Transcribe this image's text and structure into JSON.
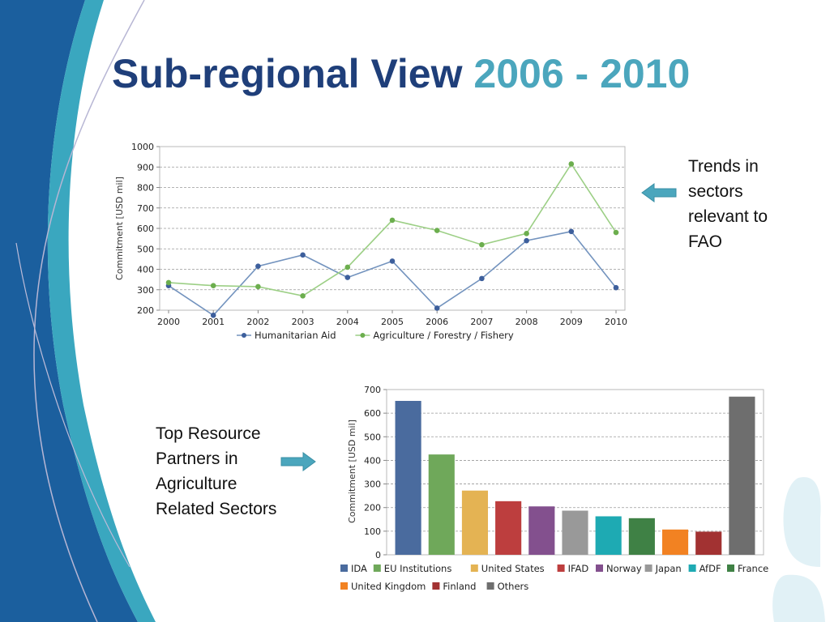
{
  "title": {
    "main": "Sub-regional View",
    "years": "2006 - 2010"
  },
  "note_trends": [
    "Trends in",
    "sectors",
    "relevant to",
    "FAO"
  ],
  "note_partners": [
    "Top Resource",
    "Partners in",
    "Agriculture",
    "Related Sectors"
  ],
  "colors": {
    "title": "#1f3f7a",
    "accent": "#4ba6bd",
    "arrow": "#4ba6bd"
  },
  "chart_data": [
    {
      "type": "line",
      "xlabel": "",
      "ylabel": "Commitment [USD mil]",
      "x": [
        "2000",
        "2001",
        "2002",
        "2003",
        "2004",
        "2005",
        "2006",
        "2007",
        "2008",
        "2009",
        "2010"
      ],
      "ylim": [
        200,
        1000
      ],
      "yticks": [
        200,
        300,
        400,
        500,
        600,
        700,
        800,
        900,
        1000
      ],
      "grid": true,
      "legend_position": "bottom",
      "series": [
        {
          "name": "Humanitarian Aid",
          "color": "#7393be",
          "marker": "#3d5f9c",
          "values": [
            320,
            175,
            415,
            470,
            360,
            440,
            210,
            355,
            540,
            585,
            310
          ]
        },
        {
          "name": "Agriculture / Forestry / Fishery",
          "color": "#9ccf85",
          "marker": "#6cae4e",
          "values": [
            335,
            320,
            315,
            270,
            410,
            640,
            590,
            520,
            575,
            915,
            580
          ]
        }
      ]
    },
    {
      "type": "bar",
      "xlabel": "",
      "ylabel": "Commitment [USD mil]",
      "ylim": [
        0,
        700
      ],
      "yticks": [
        0,
        100,
        200,
        300,
        400,
        500,
        600,
        700
      ],
      "grid": true,
      "legend_position": "bottom",
      "categories": [
        "IDA",
        "EU Institutions",
        "United States",
        "IFAD",
        "Norway",
        "Japan",
        "AfDF",
        "France",
        "United Kingdom",
        "Finland",
        "Others"
      ],
      "values": [
        652,
        425,
        272,
        227,
        205,
        187,
        163,
        155,
        107,
        98,
        670
      ],
      "colors": [
        "#4a6b9e",
        "#6fa85a",
        "#e4b353",
        "#bd3e3e",
        "#83508e",
        "#999999",
        "#1eaab3",
        "#3f8145",
        "#f28222",
        "#a23232",
        "#6e6e6e"
      ]
    }
  ]
}
